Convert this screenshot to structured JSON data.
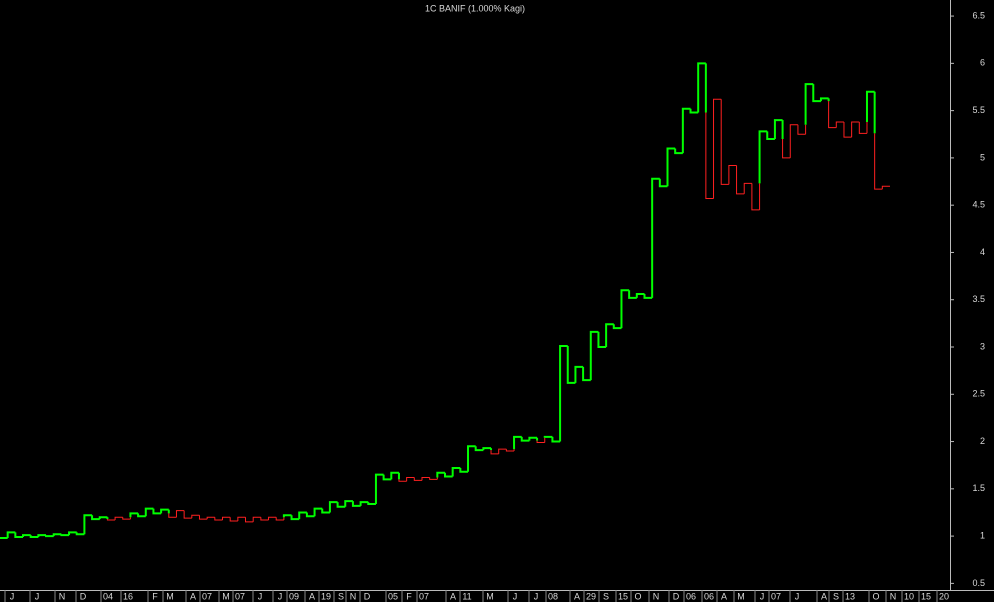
{
  "chart_data": {
    "type": "kagi",
    "title": "1C BANIF (1.000% Kagi)",
    "values": [
      0.98,
      1.04,
      0.99,
      1.01,
      0.99,
      1.01,
      1.0,
      1.02,
      1.01,
      1.04,
      1.02,
      1.22,
      1.18,
      1.2,
      1.17,
      1.2,
      1.18,
      1.24,
      1.21,
      1.29,
      1.24,
      1.28,
      1.2,
      1.27,
      1.19,
      1.22,
      1.18,
      1.2,
      1.17,
      1.2,
      1.16,
      1.2,
      1.15,
      1.2,
      1.17,
      1.2,
      1.17,
      1.22,
      1.18,
      1.25,
      1.21,
      1.29,
      1.25,
      1.36,
      1.31,
      1.37,
      1.32,
      1.36,
      1.34,
      1.65,
      1.6,
      1.67,
      1.58,
      1.62,
      1.59,
      1.62,
      1.6,
      1.67,
      1.63,
      1.72,
      1.68,
      1.95,
      1.91,
      1.93,
      1.87,
      1.92,
      1.9,
      2.05,
      2.01,
      2.04,
      1.99,
      2.05,
      2.0,
      3.01,
      2.62,
      2.79,
      2.65,
      3.16,
      3.0,
      3.24,
      3.2,
      3.6,
      3.52,
      3.56,
      3.52,
      4.78,
      4.7,
      5.1,
      5.05,
      5.52,
      5.48,
      6.0,
      4.57,
      5.62,
      4.72,
      4.92,
      4.62,
      4.73,
      4.45,
      5.28,
      5.2,
      5.4,
      5.0,
      5.35,
      5.25,
      5.78,
      5.6,
      5.63,
      5.32,
      5.38,
      5.22,
      5.38,
      5.26,
      5.7,
      4.67,
      4.7
    ],
    "up_color": "#00ff00",
    "down_color": "#ff2020",
    "x_labels": [
      "J",
      "J",
      "N",
      "D",
      "04",
      "16",
      "F",
      "M",
      "A",
      "07",
      "M",
      "07",
      "J",
      "J",
      "09",
      "A",
      "19",
      "S",
      "N",
      "D",
      "05",
      "F",
      "07",
      "A",
      "11",
      "M",
      "J",
      "J",
      "08",
      "A",
      "29",
      "S",
      "15",
      "O",
      "N",
      "D",
      "06",
      "06",
      "A",
      "M",
      "J",
      "07",
      "J",
      "A",
      "S",
      "13",
      "O",
      "N",
      "10",
      "15",
      "20"
    ],
    "ylim": [
      0.43,
      6.67
    ],
    "yticks": [
      0.5,
      1.0,
      1.5,
      2.0,
      2.5,
      3.0,
      3.5,
      4.0,
      4.5,
      5.0,
      5.5,
      6.0,
      6.5
    ]
  }
}
